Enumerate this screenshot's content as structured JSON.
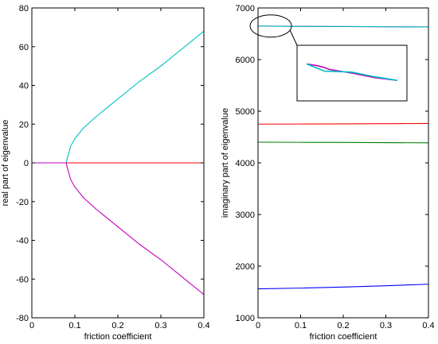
{
  "chart_data": [
    {
      "type": "line",
      "title": "",
      "xlabel": "friction coefficient",
      "ylabel": "real part of eigenvalue",
      "xlim": [
        0,
        0.4
      ],
      "ylim": [
        -80,
        80
      ],
      "xticks": [
        0,
        0.1,
        0.2,
        0.3,
        0.4
      ],
      "xtick_labels": [
        "0",
        "0.1",
        "0.2",
        "0.3",
        "0.4"
      ],
      "yticks": [
        -80,
        -60,
        -40,
        -20,
        0,
        20,
        40,
        60,
        80
      ],
      "ytick_labels": [
        "-80",
        "-60",
        "-40",
        "-20",
        "0",
        "20",
        "40",
        "60",
        "80"
      ],
      "grid": false,
      "series": [
        {
          "color": "#00c0c0",
          "x": [
            0,
            0.03,
            0.06,
            0.08,
            0.083,
            0.087,
            0.09,
            0.1,
            0.12,
            0.15,
            0.2,
            0.25,
            0.3,
            0.35,
            0.4
          ],
          "y": [
            0,
            0,
            0,
            0,
            3,
            6,
            8.5,
            12.5,
            18,
            24,
            33,
            42,
            50,
            59,
            68
          ]
        },
        {
          "color": "#ff0000",
          "x": [
            0,
            0.4
          ],
          "y": [
            0,
            0
          ]
        },
        {
          "color": "#c000c0",
          "x": [
            0,
            0.03,
            0.06,
            0.08,
            0.083,
            0.087,
            0.09,
            0.1,
            0.12,
            0.15,
            0.2,
            0.25,
            0.3,
            0.35,
            0.4
          ],
          "y": [
            0,
            0,
            0,
            0,
            -3,
            -6,
            -8.5,
            -12.5,
            -18,
            -24,
            -33,
            -42,
            -50,
            -59,
            -68
          ]
        }
      ]
    },
    {
      "type": "line",
      "title": "",
      "xlabel": "friction coefficient",
      "ylabel": "imaginary part of eigenvalue",
      "xlim": [
        0,
        0.4
      ],
      "ylim": [
        1000,
        7000
      ],
      "xticks": [
        0,
        0.1,
        0.2,
        0.3,
        0.4
      ],
      "xtick_labels": [
        "0",
        "0.1",
        "0.2",
        "0.3",
        "0.4"
      ],
      "yticks": [
        1000,
        2000,
        3000,
        4000,
        5000,
        6000,
        7000
      ],
      "ytick_labels": [
        "1000",
        "2000",
        "3000",
        "4000",
        "5000",
        "6000",
        "7000"
      ],
      "grid": false,
      "inset_zoom": true,
      "series": [
        {
          "color": "#c000c0",
          "x": [
            0,
            0.05,
            0.08,
            0.1,
            0.2,
            0.3,
            0.4
          ],
          "y": [
            6650,
            6648,
            6646,
            6644,
            6640,
            6635,
            6632
          ]
        },
        {
          "color": "#00c0c0",
          "x": [
            0,
            0.05,
            0.08,
            0.1,
            0.2,
            0.3,
            0.4
          ],
          "y": [
            6650,
            6645,
            6642,
            6642,
            6641,
            6636,
            6632
          ]
        },
        {
          "color": "#ff0000",
          "x": [
            0,
            0.1,
            0.2,
            0.3,
            0.4
          ],
          "y": [
            4750,
            4752,
            4755,
            4758,
            4762
          ]
        },
        {
          "color": "#008000",
          "x": [
            0,
            0.1,
            0.2,
            0.3,
            0.4
          ],
          "y": [
            4400,
            4398,
            4395,
            4392,
            4388
          ]
        },
        {
          "color": "#0000ff",
          "x": [
            0,
            0.1,
            0.2,
            0.3,
            0.4
          ],
          "y": [
            1560,
            1575,
            1595,
            1620,
            1650
          ]
        }
      ]
    }
  ]
}
